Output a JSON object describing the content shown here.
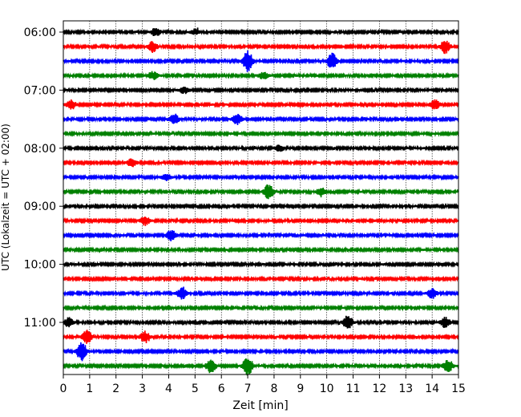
{
  "chart_data": {
    "type": "line",
    "title": "",
    "xlabel": "Zeit  [min]",
    "ylabel": "UTC (Lokalzeit = UTC + 02:00)",
    "xlim": [
      0,
      15
    ],
    "x_ticks": [
      "0",
      "1",
      "2",
      "3",
      "4",
      "5",
      "6",
      "7",
      "8",
      "9",
      "10",
      "11",
      "12",
      "13",
      "14",
      "15"
    ],
    "y_ticks": [
      "06:00",
      "07:00",
      "08:00",
      "09:00",
      "10:00",
      "11:00"
    ],
    "grid": "vertical dotted",
    "series_colors": [
      "#000000",
      "#ff0000",
      "#0000ff",
      "#008000"
    ],
    "trace_count": 24,
    "trace_start": "06:00",
    "trace_interval_min": 15,
    "events": [
      {
        "trace": 0,
        "minute": 3.5,
        "amp": 0.35
      },
      {
        "trace": 0,
        "minute": 5.0,
        "amp": 0.25
      },
      {
        "trace": 1,
        "minute": 3.4,
        "amp": 0.45
      },
      {
        "trace": 1,
        "minute": 14.5,
        "amp": 0.6
      },
      {
        "trace": 2,
        "minute": 7.0,
        "amp": 0.9
      },
      {
        "trace": 2,
        "minute": 10.2,
        "amp": 0.75
      },
      {
        "trace": 3,
        "minute": 3.4,
        "amp": 0.35
      },
      {
        "trace": 3,
        "minute": 7.6,
        "amp": 0.3
      },
      {
        "trace": 4,
        "minute": 4.6,
        "amp": 0.3
      },
      {
        "trace": 5,
        "minute": 0.3,
        "amp": 0.4
      },
      {
        "trace": 5,
        "minute": 14.1,
        "amp": 0.45
      },
      {
        "trace": 6,
        "minute": 4.2,
        "amp": 0.45
      },
      {
        "trace": 6,
        "minute": 6.6,
        "amp": 0.5
      },
      {
        "trace": 8,
        "minute": 8.2,
        "amp": 0.3
      },
      {
        "trace": 9,
        "minute": 2.6,
        "amp": 0.35
      },
      {
        "trace": 10,
        "minute": 3.9,
        "amp": 0.3
      },
      {
        "trace": 11,
        "minute": 7.8,
        "amp": 0.7
      },
      {
        "trace": 11,
        "minute": 9.8,
        "amp": 0.35
      },
      {
        "trace": 13,
        "minute": 3.1,
        "amp": 0.4
      },
      {
        "trace": 14,
        "minute": 4.1,
        "amp": 0.45
      },
      {
        "trace": 18,
        "minute": 4.5,
        "amp": 0.5
      },
      {
        "trace": 18,
        "minute": 14.0,
        "amp": 0.45
      },
      {
        "trace": 20,
        "minute": 0.2,
        "amp": 0.4
      },
      {
        "trace": 20,
        "minute": 10.8,
        "amp": 0.6
      },
      {
        "trace": 20,
        "minute": 14.5,
        "amp": 0.45
      },
      {
        "trace": 21,
        "minute": 0.9,
        "amp": 0.6
      },
      {
        "trace": 21,
        "minute": 3.1,
        "amp": 0.5
      },
      {
        "trace": 22,
        "minute": 0.7,
        "amp": 0.8
      },
      {
        "trace": 23,
        "minute": 5.6,
        "amp": 0.6
      },
      {
        "trace": 23,
        "minute": 7.0,
        "amp": 0.85
      },
      {
        "trace": 23,
        "minute": 14.6,
        "amp": 0.6
      }
    ]
  }
}
